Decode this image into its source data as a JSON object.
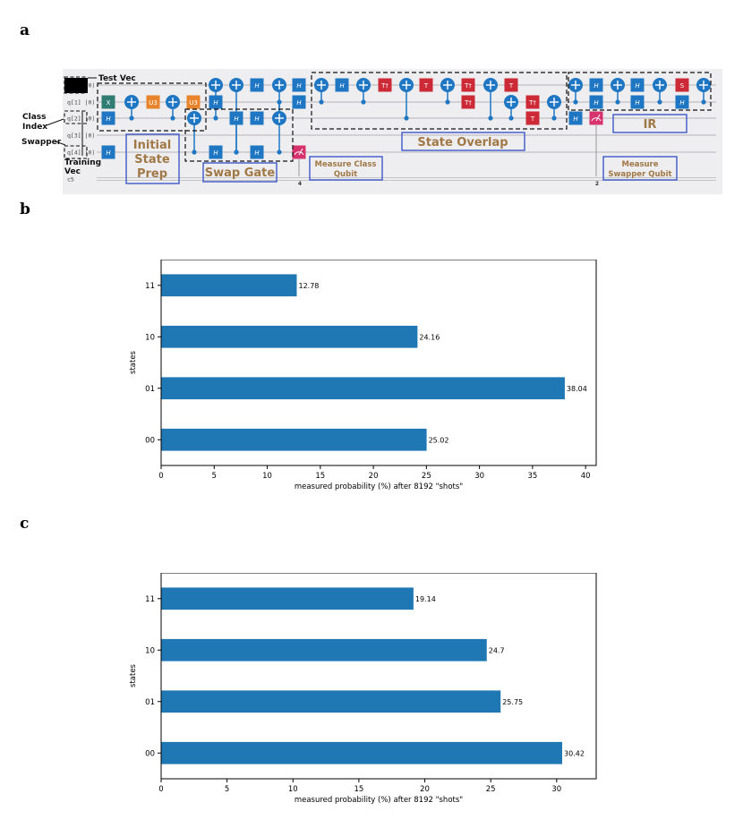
{
  "panels": {
    "a": "a",
    "b": "b",
    "c": "c"
  },
  "circuit": {
    "qubit_labels": [
      "q[0] |0⟩",
      "q[1] |0⟩",
      "q[2] |0⟩",
      "q[3] |0⟩",
      "q[4] |0⟩",
      "c5"
    ],
    "side_labels": {
      "test_vec": "Test Vec",
      "class_index": "Class\nIndex",
      "swapper": "Swapper",
      "training_vec": "Training\nVec"
    },
    "boxes": {
      "initial_state_prep": "Initial\nState\nPrep",
      "swap_gate": "Swap Gate",
      "measure_class": "Measure Class\nQubit",
      "state_overlap": "State Overlap",
      "ir": "IR",
      "measure_swapper": "Measure\nSwapper Qubit"
    },
    "gate_labels": {
      "x": "X",
      "h": "H",
      "u3": "U3",
      "t": "T",
      "tdg": "T†",
      "s": "S"
    },
    "classical_bits": [
      "4",
      "2"
    ],
    "colors": {
      "bg": "#eeedf0",
      "wire": "#b4b4b8",
      "gate_blue": "#1f77c4",
      "x_teal": "#2f7d73",
      "u3_orange": "#e8842c",
      "t_red": "#cc2a36",
      "measure_pink": "#d6336c",
      "box_label_brown": "#a07846",
      "label_box_border": "#3e57c9"
    }
  },
  "charts": [
    {
      "chart_data": {
        "type": "bar",
        "orientation": "horizontal",
        "categories": [
          "00",
          "01",
          "10",
          "11"
        ],
        "values": [
          25.02,
          38.04,
          24.16,
          12.78
        ],
        "data_labels": [
          "25.02",
          "38.04",
          "24.16",
          "12.78"
        ],
        "xlabel": "measured probability (%) after 8192 \"shots\"",
        "ylabel": "states",
        "xlim": [
          0,
          41.0
        ],
        "xticks": [
          0,
          5,
          10,
          15,
          20,
          25,
          30,
          35,
          40
        ],
        "grid": false,
        "color": "#1f77b4"
      }
    },
    {
      "chart_data": {
        "type": "bar",
        "orientation": "horizontal",
        "categories": [
          "00",
          "01",
          "10",
          "11"
        ],
        "values": [
          30.42,
          25.75,
          24.7,
          19.14
        ],
        "data_labels": [
          "30.42",
          "25.75",
          "24.7",
          "19.14"
        ],
        "xlabel": "measured probability (%) after 8192 \"shots\"",
        "ylabel": "states",
        "xlim": [
          0,
          33.0
        ],
        "xticks": [
          0,
          5,
          10,
          15,
          20,
          25,
          30
        ],
        "grid": false,
        "color": "#1f77b4"
      }
    }
  ]
}
